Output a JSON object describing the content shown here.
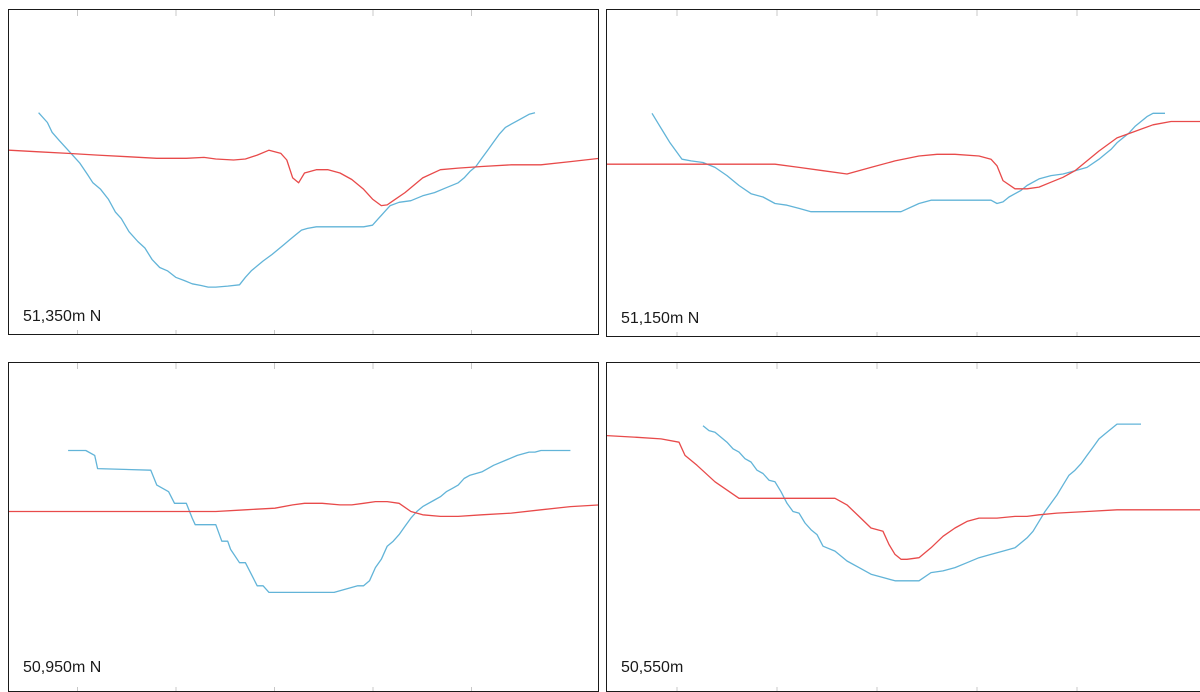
{
  "colors": {
    "blue": "#62b4d8",
    "red": "#e84a4a",
    "frame": "#1a1a1a",
    "tick": "#c8c8c8"
  },
  "panels": [
    {
      "label": "51,350m N"
    },
    {
      "label": "51,150m N"
    },
    {
      "label": "50,950m N"
    },
    {
      "label": "50,550m"
    }
  ],
  "chart_data": [
    {
      "type": "line",
      "title": "51,350m N",
      "xlim": [
        0,
        100
      ],
      "ylim": [
        0,
        100
      ],
      "series": [
        {
          "color": "#62b4d8",
          "x": [
            5,
            6.5,
            7.3,
            8.5,
            10,
            12,
            13.3,
            14.2,
            15.5,
            16.8,
            18,
            19,
            20.3,
            21.8,
            23,
            24.2,
            25.5,
            26.8,
            28.2,
            29.7,
            31,
            32.5,
            33.7,
            35,
            37,
            39,
            40,
            41,
            42,
            43,
            44.5,
            45.5,
            46.5,
            47.5,
            48.5,
            49.5,
            50.5,
            52,
            54,
            56,
            58,
            60,
            61.5,
            62.5,
            63.5,
            64.5,
            66,
            68,
            70,
            72,
            74,
            76,
            77,
            78,
            79,
            80,
            81,
            82,
            83,
            84,
            85,
            86,
            87,
            88,
            89
          ],
          "y": [
            68.5,
            65.5,
            62.5,
            60,
            57,
            53,
            49.5,
            47,
            45,
            42,
            38,
            36,
            32,
            29,
            27,
            23.5,
            21,
            20,
            18,
            17,
            16,
            15.5,
            15,
            15,
            15.3,
            15.7,
            18,
            20,
            21.5,
            23,
            25,
            26.5,
            28,
            29.5,
            31,
            32.5,
            33,
            33.5,
            33.5,
            33.5,
            33.5,
            33.5,
            34,
            36,
            38,
            40,
            41,
            41.5,
            43,
            44,
            45.5,
            47,
            48.5,
            50.5,
            52,
            54.5,
            57,
            59.5,
            62,
            64,
            65,
            66,
            67,
            68,
            68.5
          ]
        },
        {
          "color": "#e84a4a",
          "x": [
            0,
            5,
            10,
            15,
            20,
            25,
            30,
            33,
            35,
            38,
            40,
            42,
            44,
            46,
            47,
            48,
            49,
            50,
            52,
            54,
            56,
            58,
            60,
            61.5,
            63,
            64,
            65,
            67,
            70,
            73,
            76,
            80,
            85,
            90,
            95,
            100
          ],
          "y": [
            57,
            56.5,
            56,
            55.5,
            55,
            54.5,
            54.5,
            54.8,
            54.3,
            54,
            54.3,
            55.5,
            57,
            56,
            54,
            48.5,
            47,
            50,
            51,
            51,
            50,
            48,
            45,
            42,
            40,
            40.2,
            41.5,
            44,
            48.5,
            51,
            51.5,
            52,
            52.5,
            52.5,
            53.5,
            54.5
          ]
        }
      ]
    },
    {
      "type": "line",
      "title": "51,150m N",
      "xlim": [
        0,
        100
      ],
      "ylim": [
        0,
        100
      ],
      "series": [
        {
          "color": "#62b4d8",
          "x": [
            7.5,
            8.5,
            9.5,
            10.5,
            11.5,
            12.5,
            14,
            16,
            18,
            20,
            22,
            24,
            26,
            28,
            30,
            32,
            34,
            36,
            38,
            40,
            43,
            46,
            49,
            52,
            54,
            56,
            58,
            60,
            62,
            64,
            65,
            66,
            67,
            68,
            69,
            70,
            72,
            74,
            76,
            78,
            80,
            82,
            83,
            84,
            85,
            86,
            87,
            88,
            89,
            90,
            91,
            92,
            93
          ],
          "y": [
            68.5,
            65.5,
            62.5,
            59.5,
            57,
            54.5,
            54,
            53.5,
            52,
            49.5,
            46.5,
            44,
            43,
            41,
            40.5,
            39.5,
            38.5,
            38.5,
            38.5,
            38.5,
            38.5,
            38.5,
            38.5,
            41,
            42,
            42,
            42,
            42,
            42,
            42,
            41,
            41.5,
            43,
            44,
            45,
            46.5,
            48.5,
            49.5,
            50,
            51,
            52,
            54.5,
            56,
            57.5,
            59.5,
            61,
            62.5,
            64.5,
            66,
            67.5,
            68.5,
            68.5,
            68.5
          ]
        },
        {
          "color": "#e84a4a",
          "x": [
            0,
            5,
            10,
            15,
            20,
            25,
            28,
            32,
            36,
            40,
            44,
            48,
            52,
            55,
            58,
            62,
            64,
            65,
            66,
            68,
            70,
            72,
            74,
            76,
            78,
            80,
            82,
            85,
            88,
            91,
            94,
            97,
            100
          ],
          "y": [
            53,
            53,
            53,
            53,
            53,
            53,
            53,
            52,
            51,
            50,
            52,
            54,
            55.5,
            56,
            56,
            55.5,
            54.5,
            52.5,
            48,
            45.5,
            45.5,
            46,
            47.5,
            49,
            51,
            54,
            57,
            61,
            63,
            65,
            66,
            66,
            66
          ]
        }
      ]
    },
    {
      "type": "line",
      "title": "50,950m N",
      "xlim": [
        0,
        100
      ],
      "ylim": [
        0,
        100
      ],
      "series": [
        {
          "color": "#62b4d8",
          "x": [
            10,
            13,
            14.5,
            15,
            24,
            25,
            27,
            28,
            30,
            31,
            31.5,
            33,
            35,
            36,
            37,
            37.5,
            39,
            40,
            41,
            42,
            43,
            44,
            45,
            55,
            59,
            60,
            61,
            62,
            63,
            64,
            65,
            66,
            67,
            68,
            69,
            70,
            72,
            73,
            74,
            75,
            76,
            77,
            78,
            80,
            82,
            84,
            86,
            88,
            89,
            90,
            91,
            92,
            93,
            94,
            95
          ],
          "y": [
            73.5,
            73.5,
            72,
            68,
            67.5,
            63,
            61,
            57.5,
            57.5,
            53,
            51,
            51,
            51,
            46,
            46,
            43.5,
            39.5,
            39.5,
            36,
            32.5,
            32.5,
            30.5,
            30.5,
            30.5,
            32.5,
            32.5,
            34,
            38,
            40.5,
            44.5,
            46,
            48,
            50.5,
            53,
            55,
            56.5,
            58.5,
            59.5,
            61,
            62,
            63,
            65,
            66,
            67,
            69,
            70.5,
            72,
            73,
            73,
            73.5,
            73.5,
            73.5,
            73.5,
            73.5,
            73.5
          ]
        },
        {
          "color": "#e84a4a",
          "x": [
            0,
            5,
            10,
            15,
            20,
            25,
            30,
            35,
            40,
            45,
            48,
            50,
            53,
            56,
            58,
            60,
            62,
            64,
            66,
            68,
            70,
            73,
            76,
            80,
            85,
            90,
            95,
            100
          ],
          "y": [
            55,
            55,
            55,
            55,
            55,
            55,
            55,
            55,
            55.5,
            56,
            57,
            57.5,
            57.5,
            57,
            57,
            57.5,
            58,
            58,
            57.5,
            55,
            54,
            53.5,
            53.5,
            54,
            54.5,
            55.5,
            56.5,
            57
          ]
        }
      ]
    },
    {
      "type": "line",
      "title": "50,550m",
      "xlim": [
        0,
        100
      ],
      "ylim": [
        0,
        100
      ],
      "series": [
        {
          "color": "#62b4d8",
          "x": [
            16,
            17,
            18,
            19,
            20,
            21,
            22,
            23,
            24,
            25,
            26,
            27,
            28,
            29,
            30,
            31,
            32,
            33,
            34,
            35,
            36,
            38,
            40,
            42,
            44,
            46,
            48,
            50,
            52,
            54,
            56,
            58,
            60,
            62,
            64,
            66,
            68,
            70,
            71,
            72,
            73,
            74,
            75,
            76,
            77,
            78,
            79,
            80,
            81,
            82,
            83,
            84,
            85,
            86,
            87,
            88,
            89
          ],
          "y": [
            81,
            79.5,
            79,
            77.5,
            76,
            74,
            73,
            71,
            70,
            67.5,
            66.5,
            64.5,
            64,
            61,
            57.5,
            55,
            54.5,
            51.5,
            49.5,
            48,
            44.5,
            43,
            40,
            38,
            36,
            35,
            34,
            34,
            34,
            36.5,
            37,
            38,
            39.5,
            41,
            42,
            43,
            44,
            47,
            49,
            52,
            55,
            57.5,
            60,
            63,
            66,
            67.5,
            69.5,
            72,
            74.5,
            77,
            78.5,
            80,
            81.5,
            81.5,
            81.5,
            81.5,
            81.5
          ]
        },
        {
          "color": "#e84a4a",
          "x": [
            0,
            5,
            9,
            12,
            13,
            15,
            18,
            22,
            26,
            30,
            35,
            38,
            40,
            42,
            44,
            46,
            47,
            48,
            49,
            50,
            52,
            54,
            56,
            58,
            60,
            62,
            65,
            68,
            70,
            72,
            75,
            80,
            85,
            90,
            95,
            100
          ],
          "y": [
            78,
            77.5,
            77,
            76,
            72,
            69,
            64,
            59,
            59,
            59,
            59,
            59,
            57,
            53.5,
            50,
            49,
            45,
            42,
            40.5,
            40.5,
            41,
            44,
            47.5,
            50,
            52,
            53,
            53,
            53.5,
            53.5,
            54,
            54.5,
            55,
            55.5,
            55.5,
            55.5,
            55.5
          ]
        }
      ]
    }
  ]
}
